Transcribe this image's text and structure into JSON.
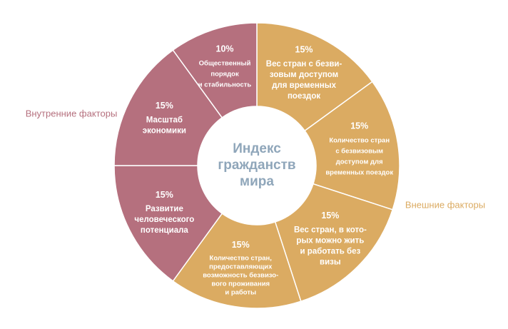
{
  "chart_data": {
    "type": "donut",
    "title": "Индекс\nгражданств\nмира",
    "categories": [
      "Вес стран с безви-\nзовым доступом\nдля временных\nпоездок",
      "Количество стран\nс безвизовым\nдоступом для\nвременных поездок",
      "Вес стран, в кото-\nрых можно жить\nи работать без\nвизы",
      "Количество стран,\nпредоставляющих\nвозможность безвизо-\nвого проживания\nи работы",
      "Развитие\nчеловеческого\nпотенциала",
      "Масштаб\nэкономики",
      "Общественный\nпорядок\nи стабильность"
    ],
    "values": [
      15,
      15,
      15,
      15,
      15,
      15,
      10
    ],
    "value_labels": [
      "15%",
      "15%",
      "15%",
      "15%",
      "15%",
      "15%",
      "10%"
    ],
    "colors": [
      "#dbab62",
      "#dbab62",
      "#dbab62",
      "#dbab62",
      "#b5707e",
      "#b5707e",
      "#b5707e"
    ],
    "annotations": [
      {
        "text": "Внутренние факторы",
        "color": "#b5707e"
      },
      {
        "text": "Внешние факторы",
        "color": "#dbab62"
      }
    ]
  }
}
